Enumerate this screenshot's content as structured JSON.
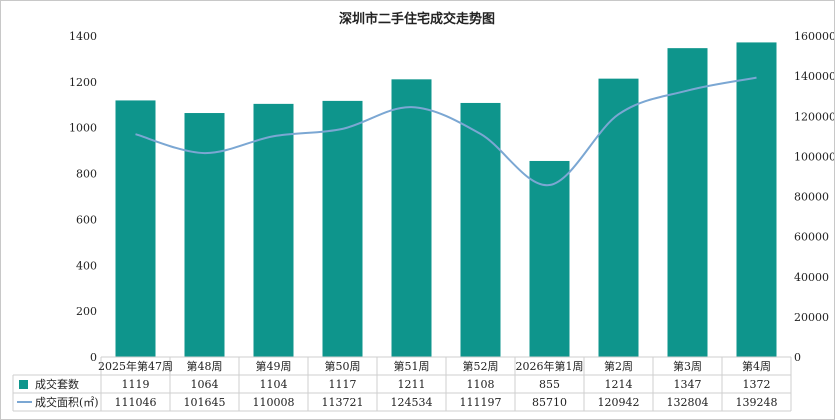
{
  "chart_data": {
    "type": "bar",
    "title": "深圳市二手住宅成交走势图",
    "categories": [
      "2025年第47周",
      "第48周",
      "第49周",
      "第50周",
      "第51周",
      "第52周",
      "2026年第1周",
      "第2周",
      "第3周",
      "第4周"
    ],
    "series": [
      {
        "name": "成交套数",
        "type": "bar",
        "axis": "left",
        "color": "#0e958c",
        "values": [
          1119,
          1064,
          1104,
          1117,
          1211,
          1108,
          855,
          1214,
          1347,
          1372
        ]
      },
      {
        "name": "成交面积(㎡)",
        "type": "line",
        "axis": "right",
        "color": "#7ba7d3",
        "values": [
          111046,
          101645,
          110008,
          113721,
          124534,
          111197,
          85710,
          120942,
          132804,
          139248
        ]
      }
    ],
    "y_left": {
      "min": 0,
      "max": 1400,
      "ticks": [
        0,
        200,
        400,
        600,
        800,
        1000,
        1200,
        1400
      ]
    },
    "y_right": {
      "min": 0,
      "max": 160000,
      "ticks": [
        0,
        20000,
        40000,
        60000,
        80000,
        100000,
        120000,
        140000,
        160000
      ]
    },
    "grid": false,
    "legend": "bottom data table"
  }
}
